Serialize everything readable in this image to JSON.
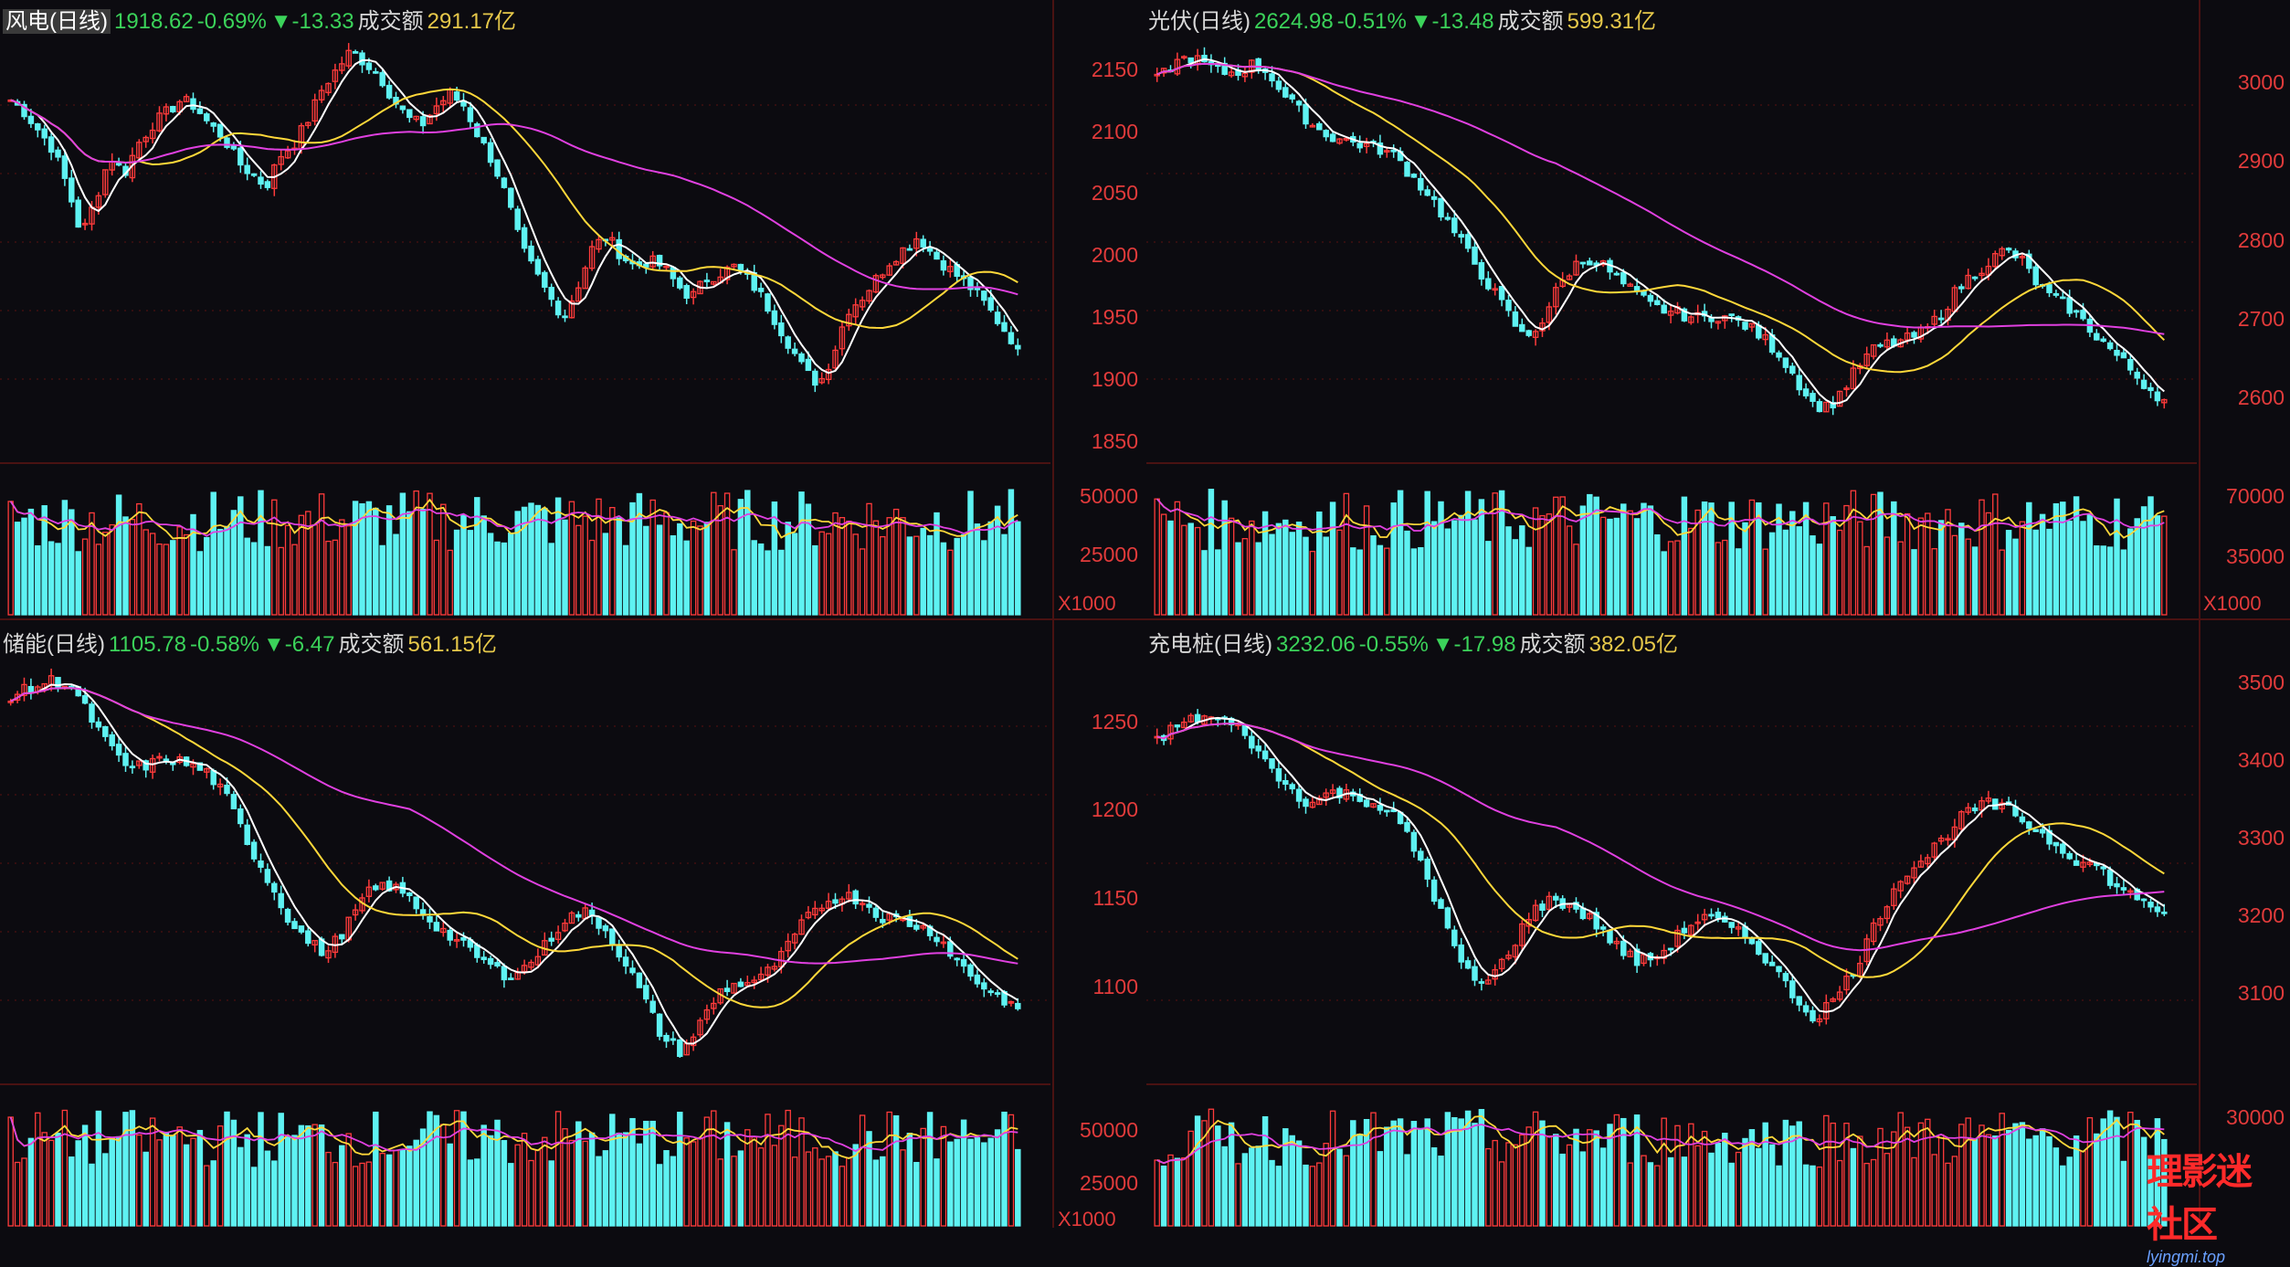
{
  "panels": [
    {
      "id": "wind",
      "name": "风电(日线)",
      "price": "1918.62",
      "pct": "-0.69%",
      "chg": "▼-13.33",
      "amount_label": "成交额",
      "amount": "291.17亿"
    },
    {
      "id": "solar",
      "name": "光伏(日线)",
      "price": "2624.98",
      "pct": "-0.51%",
      "chg": "▼-13.48",
      "amount_label": "成交额",
      "amount": "599.31亿"
    },
    {
      "id": "storage",
      "name": "储能(日线)",
      "price": "1105.78",
      "pct": "-0.58%",
      "chg": "▼-6.47",
      "amount_label": "成交额",
      "amount": "561.15亿"
    },
    {
      "id": "charging",
      "name": "充电桩(日线)",
      "price": "3232.06",
      "pct": "-0.55%",
      "chg": "▼-17.98",
      "amount_label": "成交额",
      "amount": "382.05亿"
    }
  ],
  "axes": {
    "mid_left_price": [
      "2150",
      "2100",
      "2050",
      "2000",
      "1950",
      "1900",
      "1850"
    ],
    "mid_left_vol": [
      "50000",
      "25000"
    ],
    "mid_left_unit": "X1000",
    "right_top_price": [
      "3000",
      "2900",
      "2800",
      "2700",
      "2600"
    ],
    "right_top_vol": [
      "70000",
      "35000"
    ],
    "right_top_unit": "X1000",
    "mid_bottom_price": [
      "1250",
      "1200",
      "1150",
      "1100"
    ],
    "mid_bottom_vol": [
      "50000",
      "25000"
    ],
    "mid_bottom_unit": "X1000",
    "right_bottom_price": [
      "3500",
      "3400",
      "3300",
      "3200",
      "3100"
    ],
    "right_bottom_vol": [
      "30000"
    ]
  },
  "watermark": {
    "line1": "理影迷社区",
    "line2": "lyingmi.top"
  },
  "colors": {
    "up": "#ff3b3b",
    "down": "#5ef2f2",
    "ma5": "#ffffff",
    "ma20": "#ffd83a",
    "ma60": "#e040e0",
    "grid": "#5a1010",
    "bg": "#0c0b10"
  },
  "chart_data": [
    {
      "type": "candlestick",
      "title": "风电(日线)",
      "close_last": 1918.62,
      "ylim": [
        1835,
        2175
      ],
      "series_points": [
        2120,
        2110,
        2095,
        2080,
        2050,
        2010,
        2040,
        2075,
        2060,
        2085,
        2100,
        2110,
        2120,
        2115,
        2100,
        2090,
        2070,
        2060,
        2050,
        2075,
        2085,
        2105,
        2130,
        2145,
        2160,
        2150,
        2140,
        2120,
        2105,
        2100,
        2115,
        2125,
        2115,
        2090,
        2070,
        2040,
        2000,
        1980,
        1960,
        1945,
        1970,
        2000,
        2010,
        1995,
        1985,
        1990,
        1985,
        1970,
        1960,
        1975,
        1980,
        1985,
        1975,
        1960,
        1940,
        1920,
        1900,
        1890,
        1915,
        1950,
        1960,
        1975,
        1990,
        2000,
        2010,
        1995,
        1985,
        1975,
        1965,
        1950,
        1935,
        1920
      ]
    },
    {
      "type": "candlestick",
      "title": "光伏(日线)",
      "close_last": 2624.98,
      "ylim": [
        2560,
        3080
      ],
      "series_points": [
        3020,
        3040,
        3050,
        3040,
        3030,
        3030,
        3040,
        3030,
        3000,
        2980,
        2960,
        2950,
        2945,
        2940,
        2935,
        2925,
        2900,
        2880,
        2850,
        2820,
        2790,
        2760,
        2730,
        2700,
        2720,
        2760,
        2790,
        2800,
        2790,
        2770,
        2755,
        2740,
        2735,
        2730,
        2725,
        2730,
        2725,
        2715,
        2700,
        2680,
        2650,
        2620,
        2615,
        2640,
        2670,
        2690,
        2695,
        2700,
        2710,
        2730,
        2760,
        2780,
        2795,
        2810,
        2800,
        2770,
        2750,
        2740,
        2720,
        2700,
        2680,
        2660,
        2640,
        2625
      ]
    },
    {
      "type": "candlestick",
      "title": "储能(日线)",
      "close_last": 1105.78,
      "ylim": [
        1075,
        1275
      ],
      "series_points": [
        1255,
        1258,
        1262,
        1260,
        1245,
        1230,
        1220,
        1222,
        1225,
        1222,
        1218,
        1205,
        1185,
        1168,
        1150,
        1138,
        1132,
        1145,
        1160,
        1165,
        1160,
        1150,
        1142,
        1135,
        1128,
        1122,
        1125,
        1135,
        1148,
        1152,
        1145,
        1130,
        1112,
        1092,
        1085,
        1100,
        1115,
        1118,
        1120,
        1130,
        1145,
        1155,
        1160,
        1158,
        1150,
        1148,
        1145,
        1140,
        1128,
        1118,
        1112,
        1106
      ]
    },
    {
      "type": "candlestick",
      "title": "充电桩(日线)",
      "close_last": 3232.06,
      "ylim": [
        3030,
        3560
      ],
      "series_points": [
        3450,
        3470,
        3480,
        3475,
        3460,
        3420,
        3390,
        3370,
        3385,
        3380,
        3370,
        3350,
        3300,
        3230,
        3160,
        3140,
        3180,
        3230,
        3250,
        3240,
        3220,
        3190,
        3170,
        3180,
        3210,
        3230,
        3215,
        3200,
        3170,
        3130,
        3100,
        3125,
        3170,
        3230,
        3280,
        3300,
        3330,
        3360,
        3370,
        3360,
        3340,
        3320,
        3300,
        3290,
        3260,
        3250,
        3232
      ]
    }
  ]
}
